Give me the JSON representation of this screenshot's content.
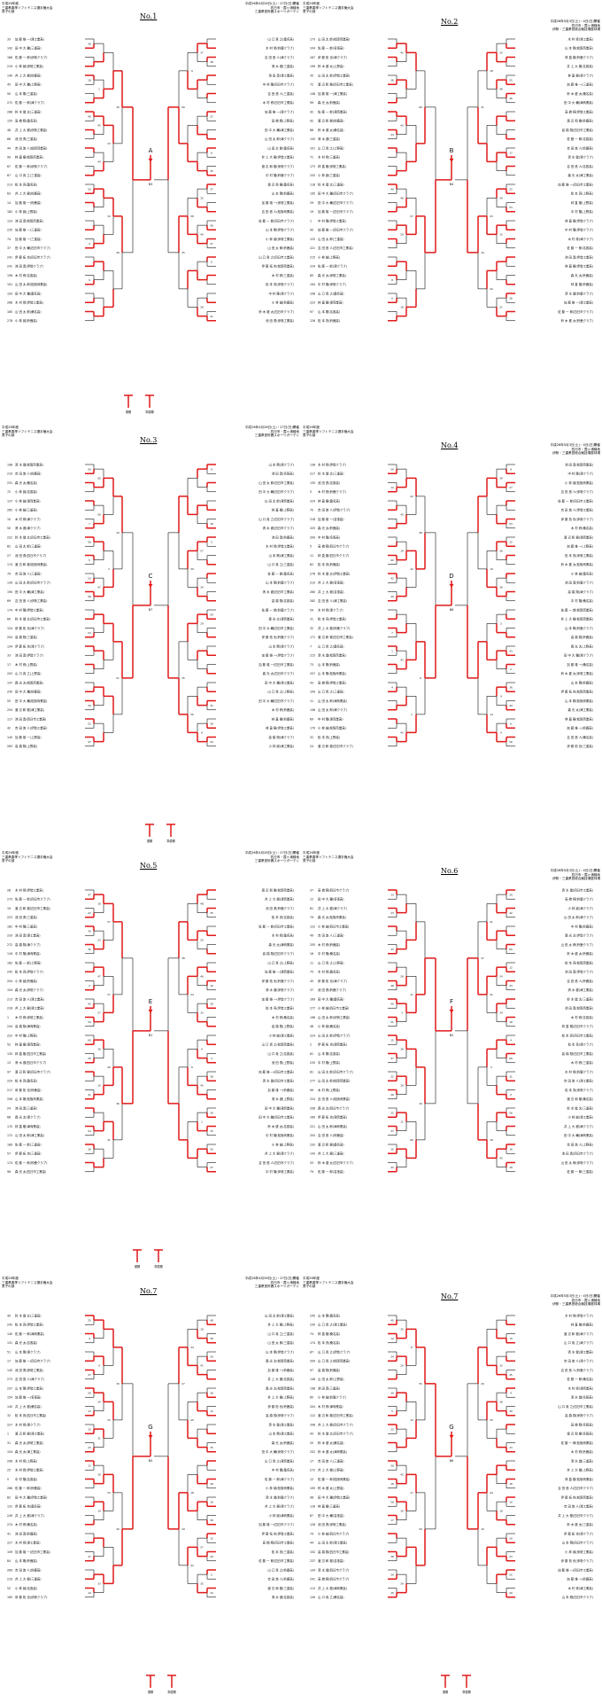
{
  "header": {
    "event_year": "平成26年度",
    "event_name": "三重県春季ソフトテニス選手権大会",
    "event_category": "男子の部",
    "date_left": "平成26年4月26日(土)・27日(日)開催",
    "date_right": "平成26年5月3日(土)・4日(日)開催",
    "venue_a": "四日市・霞ヶ浦緑地",
    "venue_b": "三重県営鈴鹿スポーツガーデン",
    "venue_c": "伊勢・三重県営総合競技場庭球場"
  },
  "pages": [
    {
      "no": "No.1",
      "block": "A",
      "final": "B3"
    },
    {
      "no": "No.2",
      "block": "B",
      "final": "B4"
    },
    {
      "no": "No.3",
      "block": "C",
      "final": "B7"
    },
    {
      "no": "No.4",
      "block": "D",
      "final": "B8"
    },
    {
      "no": "No.5",
      "block": "E",
      "final": "B1"
    },
    {
      "no": "No.6",
      "block": "F",
      "final": "B2"
    },
    {
      "no": "No.7",
      "block": "G",
      "final": "B5"
    },
    {
      "no": "No.7",
      "block": "G",
      "final": "B6"
    }
  ],
  "players": [
    "山 田 太 郎",
    "佐 藤 一 郎",
    "鈴 木 健 太",
    "高 橋 翔",
    "田 中 大 輔",
    "伊 藤 拓 也",
    "渡 辺 和 樹",
    "中 村 隆",
    "小 林 誠",
    "加 藤 雄 一",
    "吉 田 悠 人",
    "山 本 剛",
    "松 本 亮",
    "井 上 大 樹",
    "木 村 修",
    "林 直 樹",
    "清 水 健",
    "山 口 貴 之",
    "森 光 太",
    "池 田 勇"
  ],
  "teams": [
    "(四日市工業高)",
    "(鈴鹿高)",
    "(津商業高)",
    "(伊勢工業高)",
    "(松阪商業高)",
    "(桑名高)",
    "(三重高)",
    "(津工業高)",
    "(名張高)",
    "(上野高)",
    "(四日市クラブ)",
    "(鈴鹿クラブ)",
    "(伊勢クラブ)",
    "(津クラブ)"
  ],
  "final_labels": [
    "優勝",
    "準優勝",
    "第3位",
    "第3位"
  ],
  "colors": {
    "line": "#111111",
    "win": "#e11919",
    "text": "#111111"
  }
}
